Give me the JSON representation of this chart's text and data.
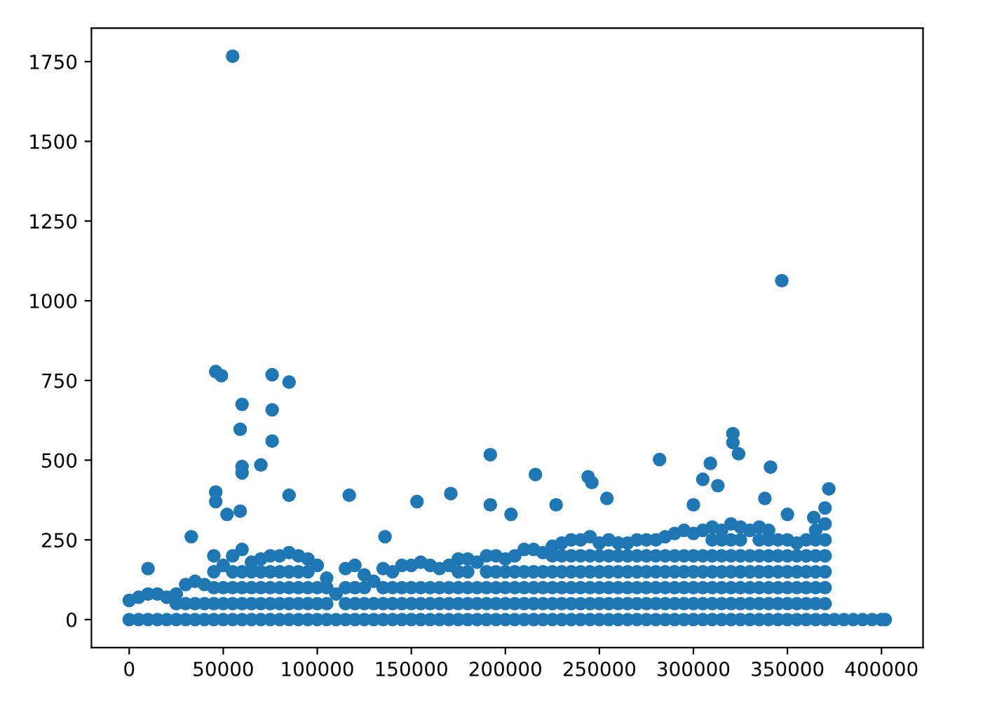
{
  "chart_data": {
    "type": "scatter",
    "xlim": [
      -20100,
      422100
    ],
    "ylim": [
      -88,
      1855
    ],
    "xticks": [
      0,
      50000,
      100000,
      150000,
      200000,
      250000,
      300000,
      350000,
      400000
    ],
    "yticks": [
      0,
      250,
      500,
      750,
      1000,
      1250,
      1500,
      1750
    ],
    "grid": false,
    "marker": "circle",
    "series": [
      {
        "color": "#1f77b4",
        "x": [
          0,
          0,
          5000,
          5000,
          10000,
          10000,
          15000,
          15000,
          20000,
          20000,
          25000,
          25000,
          25000,
          30000,
          30000,
          30000,
          35000,
          35000,
          35000,
          40000,
          40000,
          40000,
          45000,
          45000,
          45000,
          45000,
          45000,
          55000,
          55000,
          55000,
          55000,
          55000,
          60000,
          60000,
          60000,
          60000,
          60000,
          65000,
          65000,
          65000,
          65000,
          65000,
          70000,
          70000,
          70000,
          70000,
          70000,
          75000,
          75000,
          75000,
          75000,
          75000,
          80000,
          80000,
          80000,
          80000,
          80000,
          85000,
          85000,
          85000,
          85000,
          85000,
          90000,
          90000,
          90000,
          90000,
          90000,
          95000,
          95000,
          95000,
          95000,
          95000,
          175000,
          175000,
          175000,
          175000,
          175000,
          180000,
          180000,
          180000,
          180000,
          180000,
          190000,
          190000,
          190000,
          190000,
          190000,
          195000,
          195000,
          195000,
          195000,
          195000,
          200000,
          200000,
          200000,
          200000,
          200000,
          205000,
          205000,
          205000,
          205000,
          205000,
          210000,
          210000,
          210000,
          210000,
          210000,
          215000,
          215000,
          215000,
          215000,
          215000,
          220000,
          220000,
          220000,
          220000,
          220000,
          50000,
          50000,
          50000,
          50000,
          100000,
          100000,
          100000,
          100000,
          105000,
          105000,
          105000,
          105000,
          115000,
          115000,
          115000,
          115000,
          120000,
          120000,
          120000,
          120000,
          125000,
          125000,
          125000,
          125000,
          135000,
          135000,
          135000,
          135000,
          140000,
          140000,
          140000,
          140000,
          145000,
          145000,
          145000,
          145000,
          150000,
          150000,
          150000,
          150000,
          155000,
          155000,
          155000,
          155000,
          160000,
          160000,
          160000,
          160000,
          165000,
          165000,
          165000,
          165000,
          170000,
          170000,
          170000,
          170000,
          185000,
          185000,
          185000,
          185000,
          110000,
          110000,
          130000,
          130000,
          130000,
          225000,
          225000,
          225000,
          225000,
          225000,
          225000,
          230000,
          230000,
          230000,
          230000,
          230000,
          230000,
          235000,
          235000,
          235000,
          235000,
          235000,
          235000,
          240000,
          240000,
          240000,
          240000,
          240000,
          240000,
          245000,
          245000,
          245000,
          245000,
          245000,
          245000,
          250000,
          250000,
          250000,
          250000,
          250000,
          250000,
          255000,
          255000,
          255000,
          255000,
          255000,
          255000,
          260000,
          260000,
          260000,
          260000,
          260000,
          260000,
          265000,
          265000,
          265000,
          265000,
          265000,
          265000,
          270000,
          270000,
          270000,
          270000,
          270000,
          270000,
          275000,
          275000,
          275000,
          275000,
          275000,
          275000,
          280000,
          280000,
          280000,
          280000,
          280000,
          280000,
          285000,
          285000,
          285000,
          285000,
          285000,
          285000,
          290000,
          290000,
          290000,
          290000,
          290000,
          290000,
          295000,
          295000,
          295000,
          295000,
          295000,
          295000,
          300000,
          300000,
          300000,
          300000,
          300000,
          300000,
          305000,
          305000,
          305000,
          305000,
          305000,
          305000,
          330000,
          330000,
          330000,
          330000,
          330000,
          330000,
          345000,
          345000,
          345000,
          345000,
          345000,
          345000,
          350000,
          350000,
          350000,
          350000,
          350000,
          350000,
          355000,
          355000,
          355000,
          355000,
          355000,
          355000,
          360000,
          360000,
          360000,
          360000,
          360000,
          360000,
          310000,
          310000,
          310000,
          310000,
          310000,
          310000,
          310000,
          315000,
          315000,
          315000,
          315000,
          315000,
          315000,
          315000,
          320000,
          320000,
          320000,
          320000,
          320000,
          320000,
          320000,
          325000,
          325000,
          325000,
          325000,
          325000,
          325000,
          325000,
          335000,
          335000,
          335000,
          335000,
          335000,
          335000,
          335000,
          340000,
          340000,
          340000,
          340000,
          340000,
          340000,
          340000,
          365000,
          365000,
          365000,
          365000,
          365000,
          365000,
          365000,
          370000,
          370000,
          370000,
          370000,
          370000,
          370000,
          370000,
          375000,
          380000,
          385000,
          390000,
          395000,
          400000,
          402000,
          55000,
          347000,
          46000,
          49000,
          76000,
          85000,
          60000,
          76000,
          59000,
          76000,
          70000,
          60000,
          60000,
          192000,
          282000,
          321000,
          321000,
          324000,
          309000,
          341000,
          216000,
          244000,
          246000,
          117000,
          85000,
          171000,
          46000,
          46000,
          153000,
          227000,
          305000,
          313000,
          372000,
          370000,
          59000,
          192000,
          52000,
          10000,
          33000,
          136000,
          203000,
          300000,
          338000,
          254000,
          364000,
          350000
        ],
        "values": [
          0,
          60,
          0,
          70,
          0,
          80,
          0,
          80,
          0,
          70,
          0,
          50,
          80,
          0,
          50,
          110,
          0,
          50,
          120,
          0,
          50,
          110,
          0,
          50,
          100,
          150,
          200,
          0,
          50,
          100,
          150,
          200,
          0,
          50,
          100,
          150,
          220,
          0,
          50,
          100,
          150,
          180,
          0,
          50,
          100,
          150,
          190,
          0,
          50,
          100,
          150,
          200,
          0,
          50,
          100,
          150,
          200,
          0,
          50,
          100,
          150,
          210,
          0,
          50,
          100,
          150,
          200,
          0,
          50,
          100,
          150,
          190,
          0,
          50,
          100,
          150,
          190,
          0,
          50,
          100,
          150,
          190,
          0,
          50,
          100,
          150,
          200,
          0,
          50,
          100,
          150,
          200,
          0,
          50,
          100,
          150,
          190,
          0,
          50,
          100,
          150,
          200,
          0,
          50,
          100,
          150,
          220,
          0,
          50,
          100,
          150,
          220,
          0,
          50,
          100,
          150,
          210,
          0,
          50,
          100,
          170,
          0,
          50,
          100,
          170,
          0,
          50,
          100,
          130,
          0,
          50,
          100,
          160,
          0,
          50,
          100,
          170,
          0,
          50,
          100,
          140,
          0,
          50,
          100,
          160,
          0,
          50,
          100,
          150,
          0,
          50,
          100,
          170,
          0,
          50,
          100,
          170,
          0,
          50,
          100,
          180,
          0,
          50,
          100,
          170,
          0,
          50,
          100,
          160,
          0,
          50,
          100,
          170,
          0,
          50,
          100,
          180,
          0,
          80,
          0,
          50,
          120,
          0,
          50,
          100,
          150,
          200,
          230,
          0,
          50,
          100,
          150,
          200,
          240,
          0,
          50,
          100,
          150,
          200,
          250,
          0,
          50,
          100,
          150,
          200,
          250,
          0,
          50,
          100,
          150,
          200,
          260,
          0,
          50,
          100,
          150,
          200,
          240,
          0,
          50,
          100,
          150,
          200,
          250,
          0,
          50,
          100,
          150,
          200,
          240,
          0,
          50,
          100,
          150,
          200,
          240,
          0,
          50,
          100,
          150,
          200,
          250,
          0,
          50,
          100,
          150,
          200,
          250,
          0,
          50,
          100,
          150,
          200,
          250,
          0,
          50,
          100,
          150,
          200,
          260,
          0,
          50,
          100,
          150,
          200,
          270,
          0,
          50,
          100,
          150,
          200,
          280,
          0,
          50,
          100,
          150,
          200,
          270,
          0,
          50,
          100,
          150,
          200,
          280,
          0,
          50,
          100,
          150,
          200,
          280,
          0,
          50,
          100,
          150,
          200,
          250,
          0,
          50,
          100,
          150,
          200,
          250,
          0,
          50,
          100,
          150,
          200,
          240,
          0,
          50,
          100,
          150,
          200,
          250,
          0,
          50,
          100,
          150,
          200,
          250,
          290,
          0,
          50,
          100,
          150,
          200,
          250,
          280,
          0,
          50,
          100,
          150,
          200,
          250,
          300,
          0,
          50,
          100,
          150,
          200,
          250,
          290,
          0,
          50,
          100,
          150,
          200,
          250,
          290,
          0,
          50,
          100,
          150,
          200,
          250,
          280,
          0,
          50,
          100,
          150,
          200,
          250,
          280,
          0,
          50,
          100,
          150,
          200,
          250,
          300,
          0,
          0,
          0,
          0,
          0,
          0,
          0,
          1767,
          1063,
          778,
          765,
          768,
          745,
          675,
          658,
          597,
          560,
          485,
          480,
          460,
          517,
          502,
          583,
          555,
          520,
          490,
          478,
          455,
          448,
          430,
          390,
          390,
          395,
          400,
          370,
          370,
          360,
          440,
          420,
          410,
          350,
          340,
          360,
          330,
          160,
          260,
          260,
          330,
          360,
          380,
          380,
          320,
          330
        ]
      }
    ]
  }
}
